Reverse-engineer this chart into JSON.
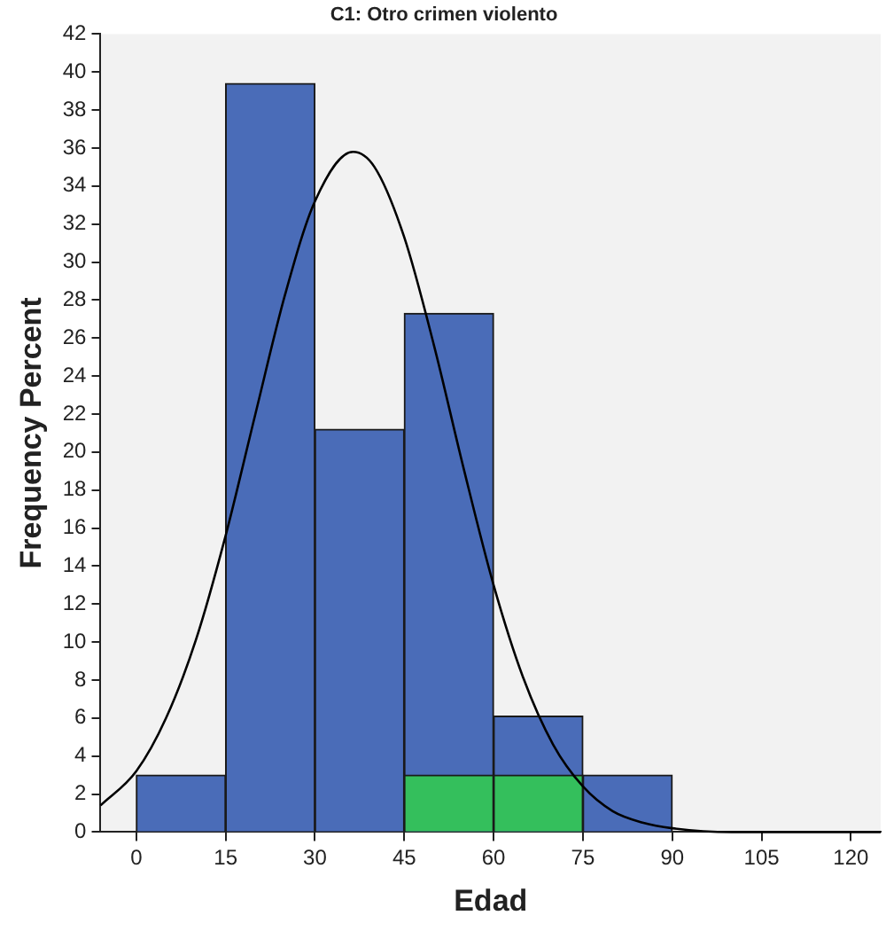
{
  "chart_data": {
    "type": "histogram",
    "title": "C1: Otro crimen violento",
    "xlabel": "Edad",
    "ylabel": "Frequency Percent",
    "bins": [
      0,
      15,
      30,
      45,
      60,
      75,
      90
    ],
    "series": [
      {
        "color": "#4a6cb8",
        "values": [
          3,
          39.4,
          21.2,
          27.3,
          6.1,
          3
        ]
      },
      {
        "color": "#34bf5c",
        "values": [
          null,
          null,
          null,
          3,
          3,
          null
        ]
      },
      {
        "type": "line",
        "color": "#000000",
        "x": [
          -6,
          0,
          5,
          10,
          15,
          20,
          25,
          30,
          36.4,
          40,
          45,
          50,
          55,
          60,
          65,
          70,
          75,
          80,
          85,
          90,
          100,
          110,
          125
        ],
        "values": [
          1.4,
          3.2,
          6.0,
          10.1,
          15.6,
          22.0,
          28.3,
          33.2,
          35.8,
          35.0,
          31.3,
          25.6,
          19.1,
          13.0,
          8.1,
          4.6,
          2.4,
          1.1,
          0.5,
          0.2,
          0,
          0,
          0
        ]
      }
    ],
    "xlim": [
      -6,
      125
    ],
    "xticks": [
      0,
      15,
      30,
      45,
      60,
      75,
      90,
      105,
      120
    ],
    "ylim": [
      0,
      42
    ],
    "yticks": [
      0,
      2,
      4,
      6,
      8,
      10,
      12,
      14,
      16,
      18,
      20,
      22,
      24,
      26,
      28,
      30,
      32,
      34,
      36,
      38,
      40,
      42
    ],
    "grid": false,
    "legend": false,
    "marker": "none"
  }
}
